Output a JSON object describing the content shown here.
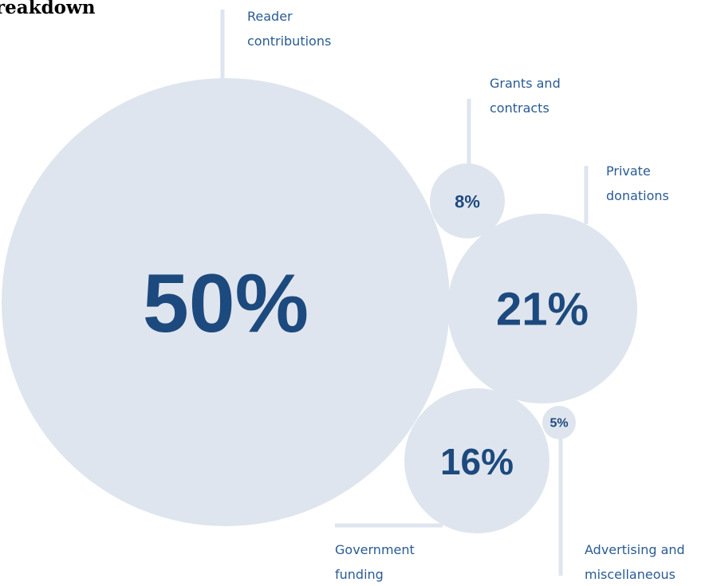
{
  "chart_data": {
    "type": "bubble",
    "title": "reakdown",
    "categories": [
      "Reader contributions",
      "Grants and contracts",
      "Private donations",
      "Government funding",
      "Advertising and miscellaneous"
    ],
    "values": [
      50,
      8,
      21,
      16,
      5
    ],
    "value_labels": [
      "50%",
      "8%",
      "21%",
      "16%",
      "5%"
    ],
    "label_lines": [
      [
        "Reader",
        "contributions"
      ],
      [
        "Grants and",
        "contracts"
      ],
      [
        "Private",
        "donations"
      ],
      [
        "Government",
        "funding"
      ],
      [
        "Advertising and",
        "miscellaneous"
      ]
    ],
    "colors": {
      "bubble": "#dfe5ee",
      "value_text": "#1d4a7e",
      "label_text": "#2a5b92"
    }
  }
}
